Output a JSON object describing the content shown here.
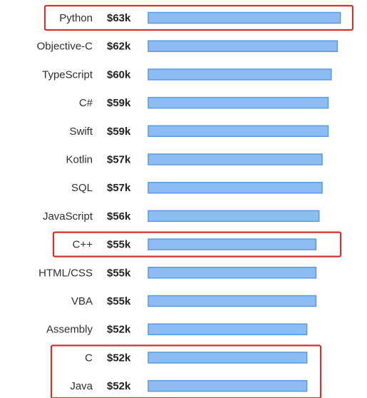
{
  "chart_data": {
    "type": "bar",
    "orientation": "horizontal",
    "categories": [
      "Python",
      "Objective-C",
      "TypeScript",
      "C#",
      "Swift",
      "Kotlin",
      "SQL",
      "JavaScript",
      "C++",
      "HTML/CSS",
      "VBA",
      "Assembly",
      "C",
      "Java"
    ],
    "values": [
      63,
      62,
      60,
      59,
      59,
      57,
      57,
      56,
      55,
      55,
      55,
      52,
      52,
      52
    ],
    "value_labels": [
      "$63k",
      "$62k",
      "$60k",
      "$59k",
      "$59k",
      "$57k",
      "$57k",
      "$56k",
      "$55k",
      "$55k",
      "$55k",
      "$52k",
      "$52k",
      "$52k"
    ],
    "highlighted_groups": [
      [
        "Python"
      ],
      [
        "C++"
      ],
      [
        "C",
        "Java"
      ]
    ],
    "title": "",
    "xlabel": "",
    "ylabel": "",
    "grid": false
  },
  "colors": {
    "bar_fill": "#8dbcf3",
    "bar_stroke": "#5a9ae0",
    "highlight": "#d0342c"
  }
}
